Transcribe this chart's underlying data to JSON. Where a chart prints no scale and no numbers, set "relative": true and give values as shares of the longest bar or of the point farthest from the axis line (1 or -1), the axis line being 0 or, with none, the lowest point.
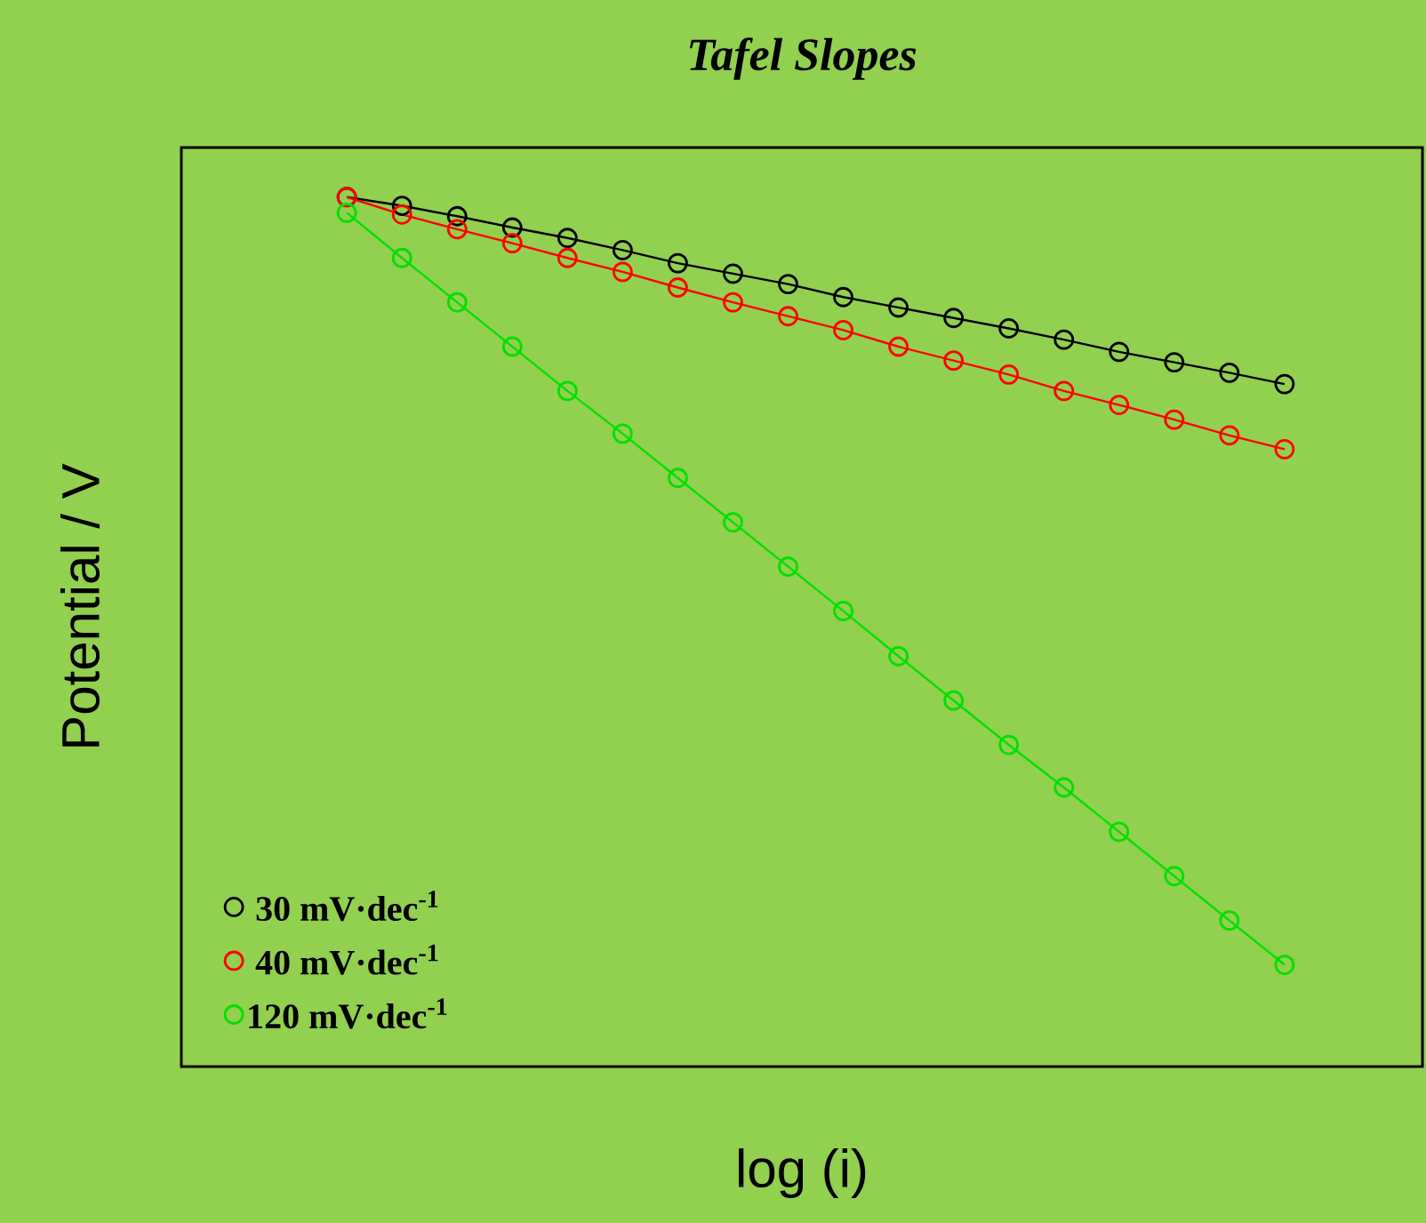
{
  "chart_data": {
    "type": "line",
    "title": "Tafel Slopes",
    "xlabel": "log (i)",
    "ylabel": "Potential / V",
    "relative": true,
    "marker": "circle",
    "line_style": "solid",
    "legend": "bottom left",
    "categories": [
      null,
      null,
      null,
      null,
      null,
      null,
      null,
      null,
      null,
      null,
      null,
      null,
      null,
      null,
      null,
      null,
      null,
      null
    ],
    "series": [
      {
        "name": "30 mV·dec$^{-1}$",
        "color": "#000000",
        "values": [
          1.0,
          0.99,
          0.978,
          0.965,
          0.953,
          0.939,
          0.924,
          0.912,
          0.9,
          0.885,
          0.873,
          0.861,
          0.849,
          0.836,
          0.822,
          0.81,
          0.798,
          0.785
        ]
      },
      {
        "name": "40 mV·dec$^{-1}$",
        "color": "#ff0000",
        "values": [
          1.0,
          0.98,
          0.963,
          0.947,
          0.93,
          0.914,
          0.896,
          0.879,
          0.863,
          0.847,
          0.828,
          0.812,
          0.796,
          0.777,
          0.761,
          0.744,
          0.726,
          0.71
        ]
      },
      {
        "name": "120 mV·dec$^{-1}$",
        "color": "#00e000",
        "values": [
          0.982,
          0.93,
          0.879,
          0.828,
          0.777,
          0.728,
          0.677,
          0.626,
          0.575,
          0.524,
          0.472,
          0.421,
          0.37,
          0.321,
          0.27,
          0.219,
          0.168,
          0.117
        ]
      }
    ]
  }
}
